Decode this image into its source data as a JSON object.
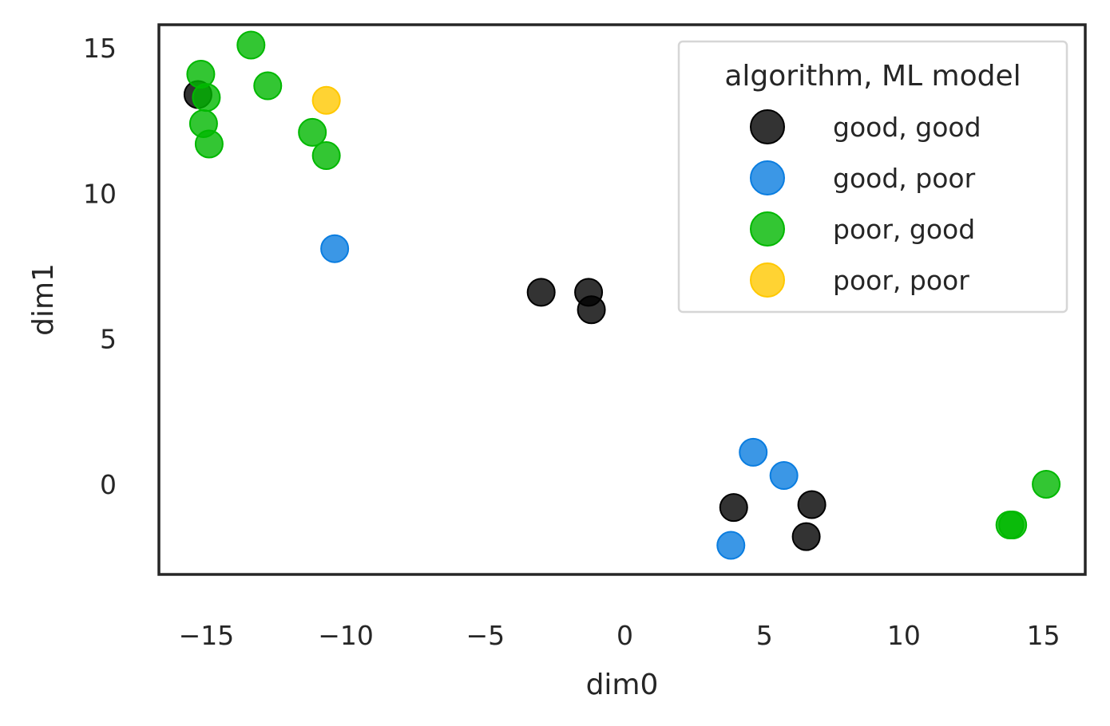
{
  "chart_data": {
    "type": "scatter",
    "xlabel": "dim0",
    "ylabel": "dim1",
    "xlim": [
      -16.7,
      16.5
    ],
    "ylim": [
      -3.1,
      15.8
    ],
    "xticks": [
      -15,
      -10,
      -5,
      0,
      5,
      10,
      15
    ],
    "yticks": [
      0,
      5,
      10,
      15
    ],
    "xtick_labels": [
      "−15",
      "−10",
      "−5",
      "0",
      "5",
      "10",
      "15"
    ],
    "ytick_labels": [
      "0",
      "5",
      "10",
      "15"
    ],
    "grid": false,
    "legend": {
      "title": "algorithm, ML model",
      "placement": "top-right"
    },
    "series": [
      {
        "name": "good, good",
        "color": "#000000",
        "points": [
          {
            "x": -15.3,
            "y": 13.4
          },
          {
            "x": -3.0,
            "y": 6.6
          },
          {
            "x": -1.3,
            "y": 6.6
          },
          {
            "x": -1.2,
            "y": 6.0
          },
          {
            "x": 3.9,
            "y": -0.8
          },
          {
            "x": 6.7,
            "y": -0.7
          },
          {
            "x": 6.5,
            "y": -1.8
          }
        ]
      },
      {
        "name": "good, poor",
        "color": "#0a7de0",
        "points": [
          {
            "x": -10.4,
            "y": 8.1
          },
          {
            "x": 4.6,
            "y": 1.1
          },
          {
            "x": 5.7,
            "y": 0.3
          },
          {
            "x": 3.8,
            "y": -2.1
          }
        ]
      },
      {
        "name": "poor, good",
        "color": "#00b800",
        "points": [
          {
            "x": -13.4,
            "y": 15.1
          },
          {
            "x": -15.2,
            "y": 14.1
          },
          {
            "x": -12.8,
            "y": 13.7
          },
          {
            "x": -15.0,
            "y": 13.3
          },
          {
            "x": -15.1,
            "y": 12.4
          },
          {
            "x": -11.2,
            "y": 12.1
          },
          {
            "x": -10.7,
            "y": 11.3
          },
          {
            "x": -14.9,
            "y": 11.7
          },
          {
            "x": 15.1,
            "y": 0.0
          },
          {
            "x": 13.9,
            "y": -1.4
          },
          {
            "x": 13.8,
            "y": -1.4
          }
        ]
      },
      {
        "name": "poor, poor",
        "color": "#ffc800",
        "points": [
          {
            "x": -10.7,
            "y": 13.2
          }
        ]
      }
    ]
  }
}
